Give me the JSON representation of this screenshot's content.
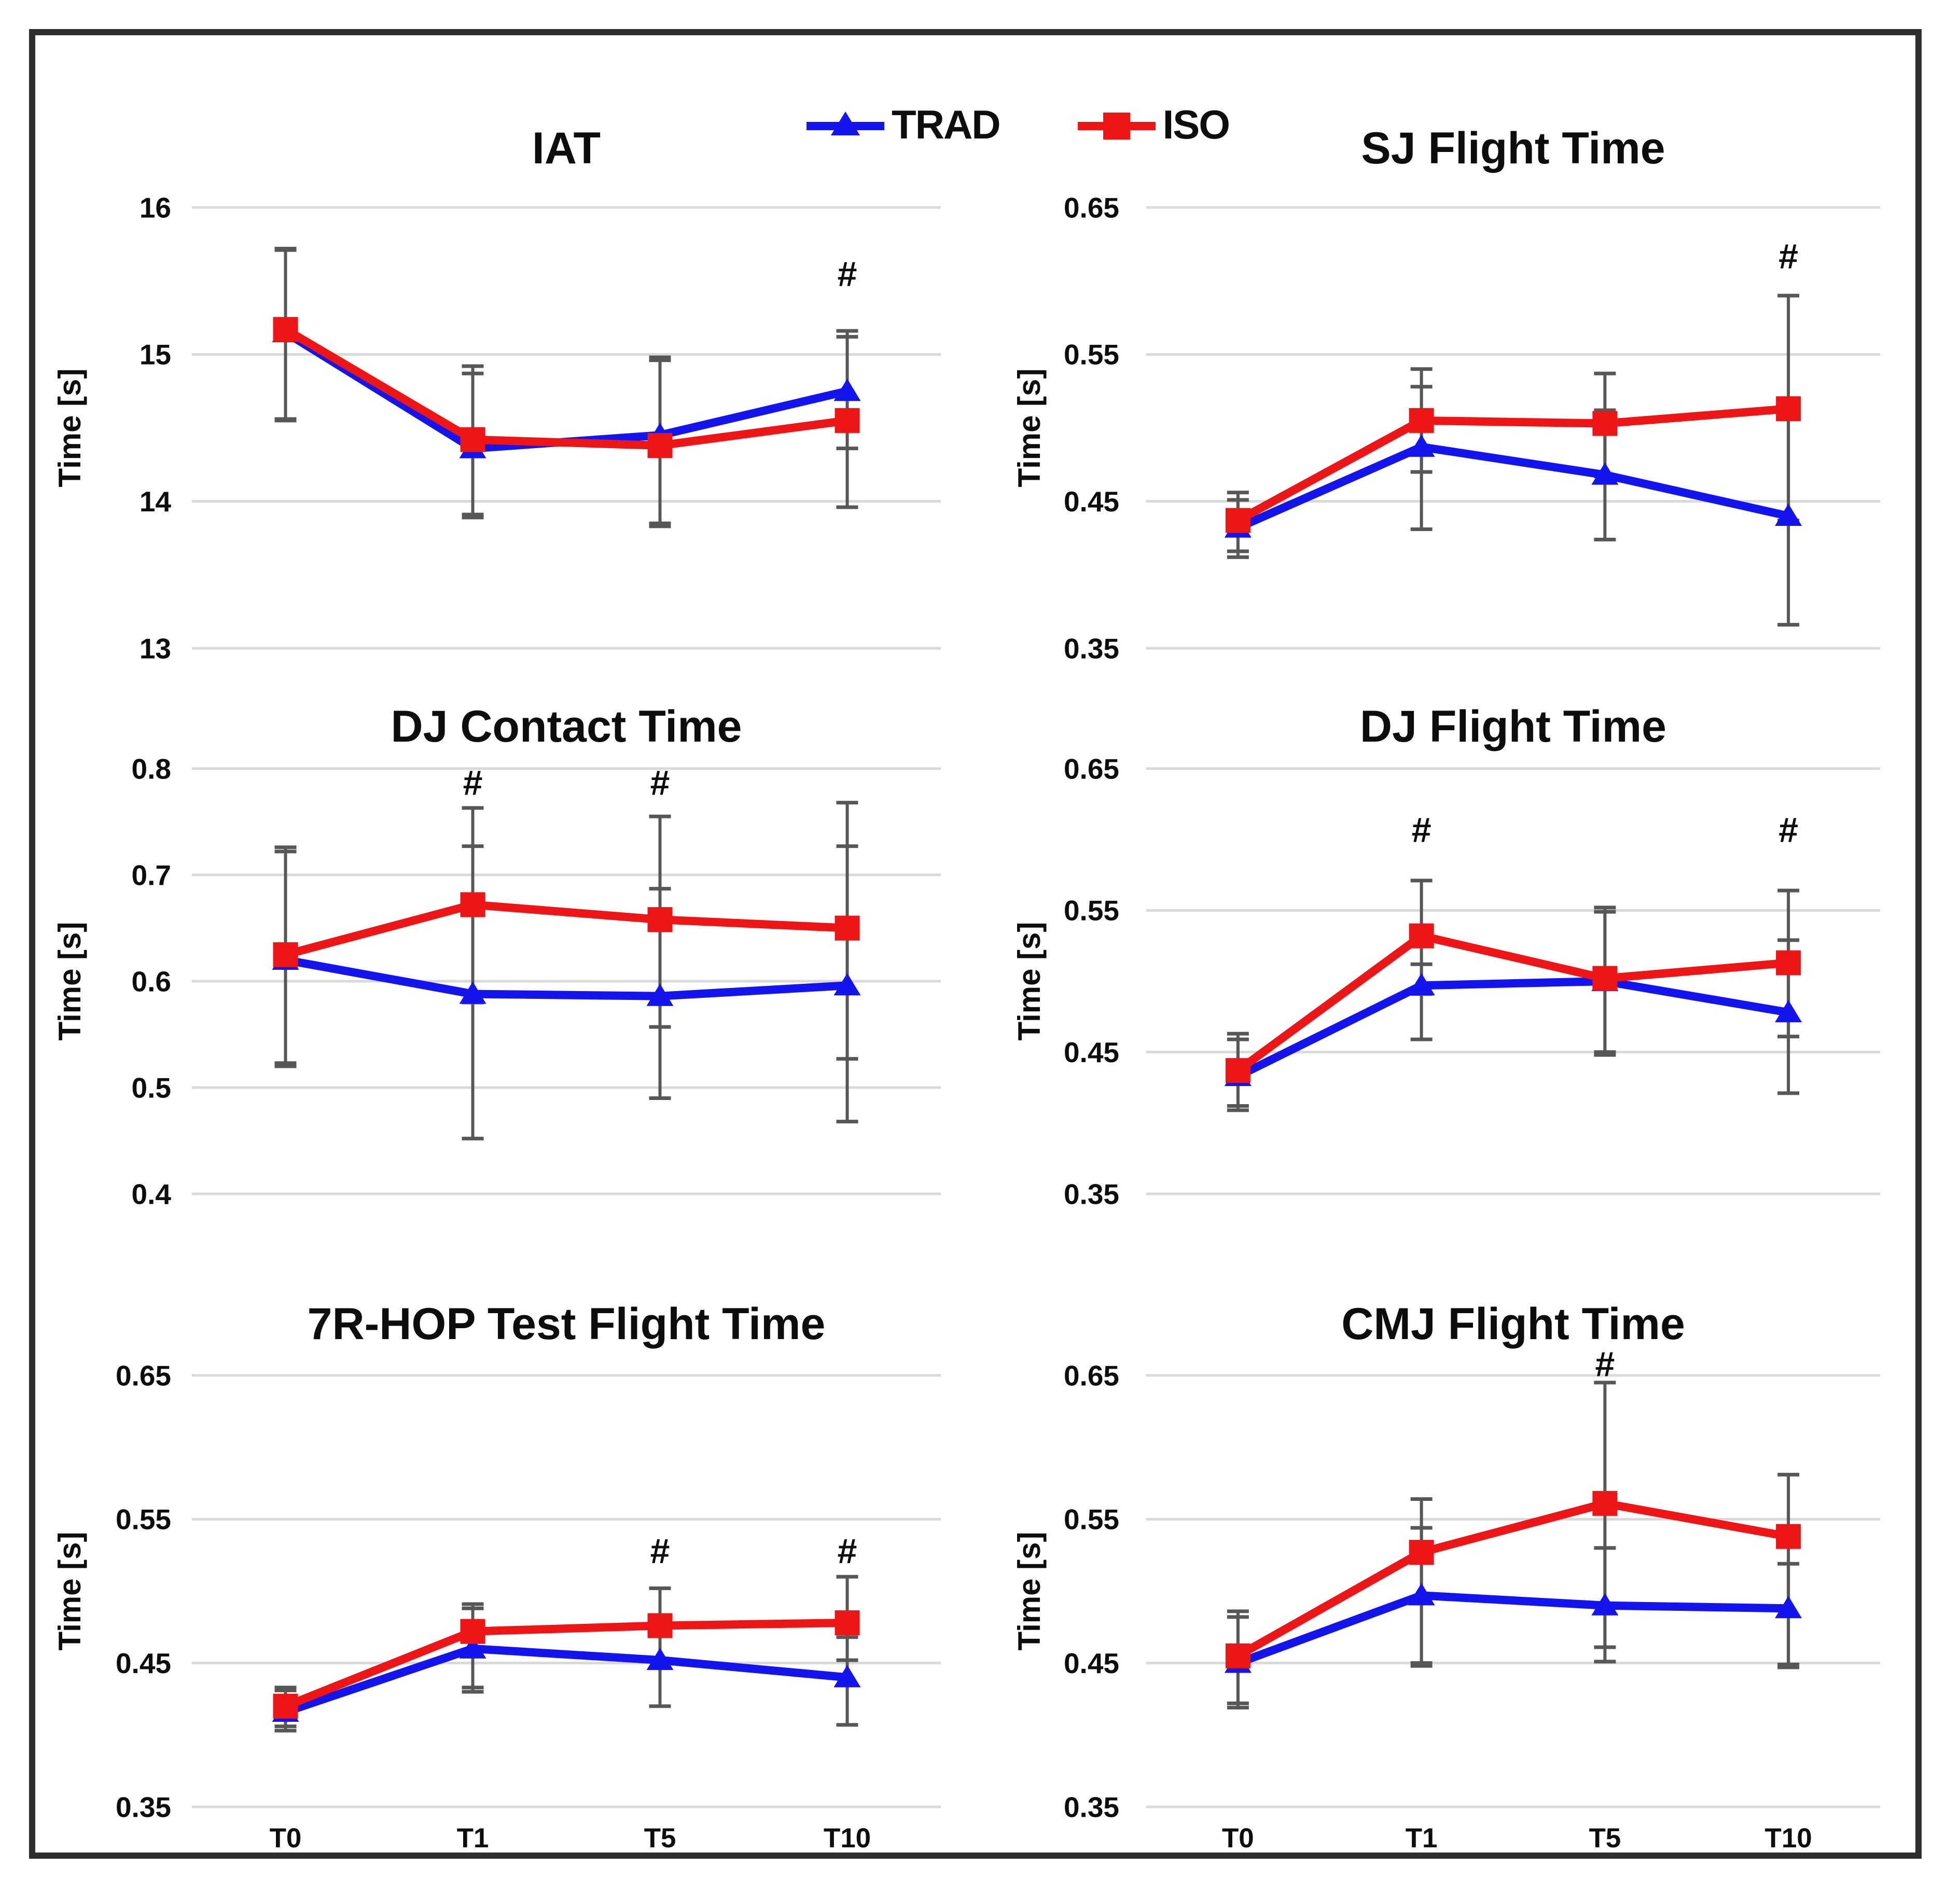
{
  "legend": {
    "items": [
      {
        "label": "TRAD",
        "series_key": "trad",
        "marker": "triangle"
      },
      {
        "label": "ISO",
        "series_key": "iso",
        "marker": "square"
      }
    ]
  },
  "colors": {
    "trad": "#1414ef",
    "iso": "#ee1516",
    "grid": "#d9d9d9",
    "error_bar": "#575757",
    "text": "#0d0d0d",
    "frame": "#2e2e2e",
    "background": "#ffffff"
  },
  "x_categories": [
    "T0",
    "T1",
    "T5",
    "T10"
  ],
  "chart_data": [
    {
      "type": "line",
      "title": "IAT",
      "ylabel": "Time [s]",
      "ylim": [
        13,
        16
      ],
      "yticks": [
        16,
        15,
        14,
        13
      ],
      "ytick_labels": [
        "16",
        "15",
        "14",
        "13"
      ],
      "x_categories": [
        "T0",
        "T1",
        "T5",
        "T10"
      ],
      "grid": true,
      "legend_position": "top-outside",
      "significance": [
        {
          "at": "T10",
          "y": 15.55,
          "symbol": "#"
        }
      ],
      "series": [
        {
          "name": "TRAD",
          "color_key": "trad",
          "marker": "triangle",
          "values": [
            15.15,
            14.36,
            14.45,
            14.75
          ],
          "err_lo": [
            14.56,
            13.89,
            13.83,
            14.36
          ],
          "err_hi": [
            15.71,
            14.87,
            14.96,
            15.12
          ]
        },
        {
          "name": "ISO",
          "color_key": "iso",
          "marker": "square",
          "values": [
            15.17,
            14.42,
            14.38,
            14.55
          ],
          "err_lo": [
            14.55,
            13.91,
            13.85,
            13.96
          ],
          "err_hi": [
            15.72,
            14.92,
            14.98,
            15.16
          ]
        }
      ]
    },
    {
      "type": "line",
      "title": "SJ Flight Time",
      "ylabel": "Time [s]",
      "ylim": [
        0.35,
        0.65
      ],
      "yticks": [
        0.65,
        0.55,
        0.45,
        0.35
      ],
      "ytick_labels": [
        "0.65",
        "0.55",
        "0.45",
        "0.35"
      ],
      "x_categories": [
        "T0",
        "T1",
        "T5",
        "T10"
      ],
      "grid": true,
      "significance": [
        {
          "at": "T10",
          "y": 0.617,
          "symbol": "#"
        }
      ],
      "series": [
        {
          "name": "TRAD",
          "color_key": "trad",
          "marker": "triangle",
          "values": [
            0.432,
            0.487,
            0.468,
            0.44
          ],
          "err_lo": [
            0.412,
            0.431,
            0.424,
            0.366
          ],
          "err_hi": [
            0.451,
            0.528,
            0.512,
            0.516
          ]
        },
        {
          "name": "ISO",
          "color_key": "iso",
          "marker": "square",
          "values": [
            0.437,
            0.505,
            0.503,
            0.513
          ],
          "err_lo": [
            0.416,
            0.47,
            0.467,
            0.437
          ],
          "err_hi": [
            0.456,
            0.54,
            0.537,
            0.59
          ]
        }
      ]
    },
    {
      "type": "line",
      "title": "DJ Contact Time",
      "ylabel": "Time [s]",
      "ylim": [
        0.4,
        0.8
      ],
      "yticks": [
        0.8,
        0.7,
        0.6,
        0.5,
        0.4
      ],
      "ytick_labels": [
        "0.8",
        "0.7",
        "0.6",
        "0.5",
        "0.4"
      ],
      "x_categories": [
        "T0",
        "T1",
        "T5",
        "T10"
      ],
      "grid": true,
      "significance": [
        {
          "at": "T1",
          "y": 0.787,
          "symbol": "#"
        },
        {
          "at": "T5",
          "y": 0.787,
          "symbol": "#"
        }
      ],
      "series": [
        {
          "name": "TRAD",
          "color_key": "trad",
          "marker": "triangle",
          "values": [
            0.62,
            0.588,
            0.586,
            0.596
          ],
          "err_lo": [
            0.52,
            0.452,
            0.49,
            0.468
          ],
          "err_hi": [
            0.722,
            0.727,
            0.687,
            0.727
          ]
        },
        {
          "name": "ISO",
          "color_key": "iso",
          "marker": "square",
          "values": [
            0.625,
            0.672,
            0.658,
            0.65
          ],
          "err_lo": [
            0.523,
            0.58,
            0.557,
            0.527
          ],
          "err_hi": [
            0.726,
            0.763,
            0.755,
            0.768
          ]
        }
      ]
    },
    {
      "type": "line",
      "title": "DJ Flight Time",
      "ylabel": "Time [s]",
      "ylim": [
        0.35,
        0.65
      ],
      "yticks": [
        0.65,
        0.55,
        0.45,
        0.35
      ],
      "ytick_labels": [
        "0.65",
        "0.55",
        "0.45",
        "0.35"
      ],
      "x_categories": [
        "T0",
        "T1",
        "T5",
        "T10"
      ],
      "grid": true,
      "significance": [
        {
          "at": "T1",
          "y": 0.607,
          "symbol": "#"
        },
        {
          "at": "T10",
          "y": 0.607,
          "symbol": "#"
        }
      ],
      "series": [
        {
          "name": "TRAD",
          "color_key": "trad",
          "marker": "triangle",
          "values": [
            0.433,
            0.497,
            0.5,
            0.478
          ],
          "err_lo": [
            0.409,
            0.459,
            0.448,
            0.421
          ],
          "err_hi": [
            0.459,
            0.512,
            0.549,
            0.529
          ]
        },
        {
          "name": "ISO",
          "color_key": "iso",
          "marker": "square",
          "values": [
            0.437,
            0.532,
            0.502,
            0.513
          ],
          "err_lo": [
            0.412,
            0.491,
            0.45,
            0.461
          ],
          "err_hi": [
            0.463,
            0.571,
            0.552,
            0.564
          ]
        }
      ]
    },
    {
      "type": "line",
      "title": "7R-HOP Test Flight Time",
      "ylabel": "Time [s]",
      "ylim": [
        0.35,
        0.65
      ],
      "yticks": [
        0.65,
        0.55,
        0.45,
        0.35
      ],
      "ytick_labels": [
        "0.65",
        "0.55",
        "0.45",
        "0.35"
      ],
      "x_categories": [
        "T0",
        "T1",
        "T5",
        "T10"
      ],
      "grid": true,
      "show_x_labels": true,
      "significance": [
        {
          "at": "T5",
          "y": 0.528,
          "symbol": "#"
        },
        {
          "at": "T10",
          "y": 0.528,
          "symbol": "#"
        }
      ],
      "series": [
        {
          "name": "TRAD",
          "color_key": "trad",
          "marker": "triangle",
          "values": [
            0.416,
            0.46,
            0.452,
            0.44
          ],
          "err_lo": [
            0.403,
            0.43,
            0.42,
            0.407
          ],
          "err_hi": [
            0.431,
            0.488,
            0.478,
            0.468
          ]
        },
        {
          "name": "ISO",
          "color_key": "iso",
          "marker": "square",
          "values": [
            0.42,
            0.472,
            0.476,
            0.478
          ],
          "err_lo": [
            0.406,
            0.433,
            0.453,
            0.452
          ],
          "err_hi": [
            0.433,
            0.491,
            0.502,
            0.51
          ]
        }
      ]
    },
    {
      "type": "line",
      "title": "CMJ Flight Time",
      "ylabel": "Time [s]",
      "ylim": [
        0.35,
        0.65
      ],
      "yticks": [
        0.65,
        0.55,
        0.45,
        0.35
      ],
      "ytick_labels": [
        "0.65",
        "0.55",
        "0.45",
        "0.35"
      ],
      "x_categories": [
        "T0",
        "T1",
        "T5",
        "T10"
      ],
      "grid": true,
      "show_x_labels": true,
      "significance": [
        {
          "at": "T5",
          "y": 0.658,
          "symbol": "#"
        }
      ],
      "series": [
        {
          "name": "TRAD",
          "color_key": "trad",
          "marker": "triangle",
          "values": [
            0.45,
            0.497,
            0.49,
            0.488
          ],
          "err_lo": [
            0.419,
            0.448,
            0.461,
            0.447
          ],
          "err_hi": [
            0.482,
            0.544,
            0.53,
            0.519
          ]
        },
        {
          "name": "ISO",
          "color_key": "iso",
          "marker": "square",
          "values": [
            0.455,
            0.527,
            0.561,
            0.538
          ],
          "err_lo": [
            0.422,
            0.45,
            0.451,
            0.449
          ],
          "err_hi": [
            0.486,
            0.564,
            0.645,
            0.581
          ]
        }
      ]
    }
  ]
}
